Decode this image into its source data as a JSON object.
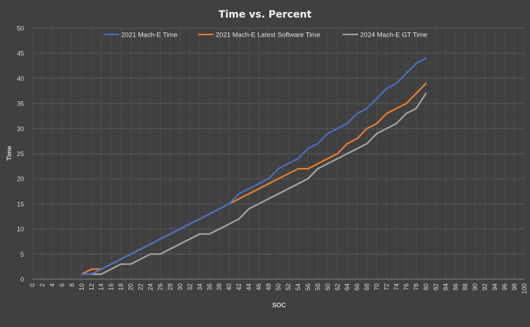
{
  "chart_data": {
    "type": "line",
    "title": "Time vs. Percent",
    "xlabel": "SOC",
    "ylabel": "Time",
    "xlim": [
      0,
      100
    ],
    "ylim": [
      0,
      50
    ],
    "y_ticks": [
      0,
      5,
      10,
      15,
      20,
      25,
      30,
      35,
      40,
      45,
      50
    ],
    "x_ticks": [
      0,
      2,
      4,
      6,
      8,
      10,
      12,
      14,
      16,
      18,
      20,
      22,
      24,
      26,
      28,
      30,
      32,
      34,
      36,
      38,
      40,
      42,
      44,
      46,
      48,
      50,
      52,
      54,
      56,
      58,
      60,
      62,
      64,
      66,
      68,
      70,
      72,
      74,
      76,
      78,
      80,
      82,
      84,
      86,
      88,
      90,
      92,
      94,
      96,
      98,
      100
    ],
    "grid": true,
    "legend_position": "top",
    "series": [
      {
        "name": "2021 Mach-E Time",
        "color": "#4472c4",
        "x": [
          10,
          12,
          14,
          16,
          18,
          20,
          22,
          24,
          26,
          28,
          30,
          32,
          34,
          36,
          38,
          40,
          42,
          44,
          46,
          48,
          50,
          52,
          54,
          56,
          58,
          60,
          62,
          64,
          66,
          68,
          70,
          72,
          74,
          76,
          78,
          80
        ],
        "values": [
          1,
          1,
          2,
          3,
          4,
          5,
          6,
          7,
          8,
          9,
          10,
          11,
          12,
          13,
          14,
          15,
          17,
          18,
          19,
          20,
          22,
          23,
          24,
          26,
          27,
          29,
          30,
          31,
          33,
          34,
          36,
          38,
          39,
          41,
          43,
          44
        ]
      },
      {
        "name": "2021 Mach-E Latest Software Time",
        "color": "#ed7d31",
        "x": [
          10,
          12,
          14,
          16,
          18,
          20,
          22,
          24,
          26,
          28,
          30,
          32,
          34,
          36,
          38,
          40,
          42,
          44,
          46,
          48,
          50,
          52,
          54,
          56,
          58,
          60,
          62,
          64,
          66,
          68,
          70,
          72,
          74,
          76,
          78,
          80
        ],
        "values": [
          1,
          2,
          2,
          3,
          4,
          5,
          6,
          7,
          8,
          9,
          10,
          11,
          12,
          13,
          14,
          15,
          16,
          17,
          18,
          19,
          20,
          21,
          22,
          22,
          23,
          24,
          25,
          27,
          28,
          30,
          31,
          33,
          34,
          35,
          37,
          39
        ]
      },
      {
        "name": "2024 Mach-E GT Time",
        "color": "#a5a5a5",
        "x": [
          10,
          12,
          14,
          16,
          18,
          20,
          22,
          24,
          26,
          28,
          30,
          32,
          34,
          36,
          38,
          40,
          42,
          44,
          46,
          48,
          50,
          52,
          54,
          56,
          58,
          60,
          62,
          64,
          66,
          68,
          70,
          72,
          74,
          76,
          78,
          80
        ],
        "values": [
          1,
          1,
          1,
          2,
          3,
          3,
          4,
          5,
          5,
          6,
          7,
          8,
          9,
          9,
          10,
          11,
          12,
          14,
          15,
          16,
          17,
          18,
          19,
          20,
          22,
          23,
          24,
          25,
          26,
          27,
          29,
          30,
          31,
          33,
          34,
          37
        ]
      }
    ]
  }
}
